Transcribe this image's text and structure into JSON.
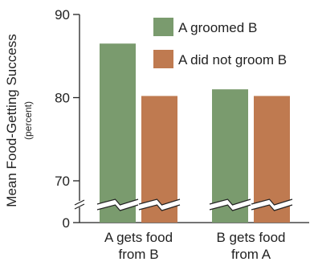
{
  "chart_data": {
    "type": "bar",
    "title": "",
    "ylabel": "Mean Food-Getting Success",
    "ylabel_unit": "(percent)",
    "categories": [
      "A gets food\nfrom B",
      "B gets food\nfrom A"
    ],
    "series": [
      {
        "name": "A groomed B",
        "color": "#7a9b6e",
        "values": [
          86.5,
          81
        ]
      },
      {
        "name": "A did not groom B",
        "color": "#bf7a50",
        "values": [
          80.2,
          80.2
        ]
      }
    ],
    "yticks": [
      0,
      70,
      80,
      90
    ],
    "ylim": [
      0,
      90
    ],
    "axis_break": {
      "from": 0,
      "to": 67.5
    },
    "legend_position": "top-right",
    "grid": false
  }
}
